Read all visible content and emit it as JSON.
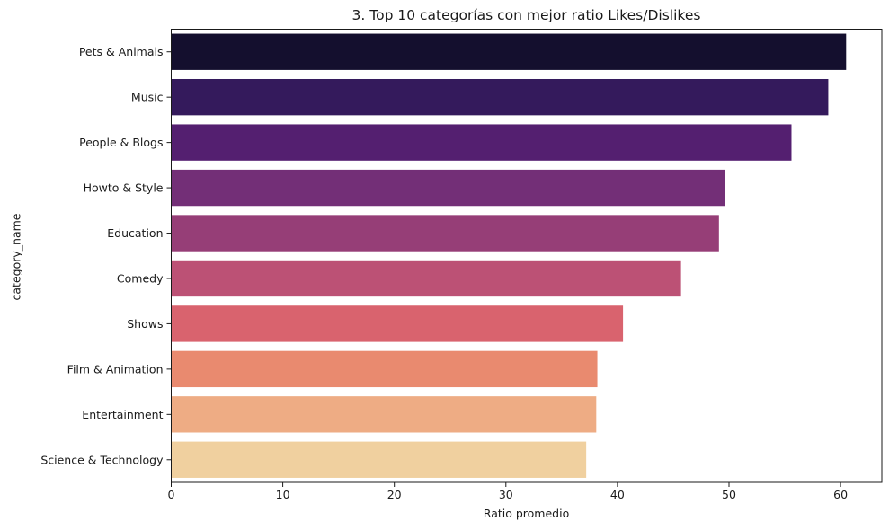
{
  "chart_data": {
    "type": "bar",
    "orientation": "horizontal",
    "title": "3. Top 10 categorías con mejor ratio Likes/Dislikes",
    "xlabel": "Ratio promedio",
    "ylabel": "category_name",
    "categories": [
      "Pets & Animals",
      "Music",
      "People & Blogs",
      "Howto & Style",
      "Education",
      "Comedy",
      "Shows",
      "Film & Animation",
      "Entertainment",
      "Science & Technology"
    ],
    "values": [
      60.5,
      58.9,
      55.6,
      49.6,
      49.1,
      45.7,
      40.5,
      38.2,
      38.1,
      37.2
    ],
    "colors": [
      "#140f2e",
      "#341a5c",
      "#541f70",
      "#732f77",
      "#963e77",
      "#bc5175",
      "#d9636e",
      "#e98a6f",
      "#eeac84",
      "#f0d09f"
    ],
    "xlim": [
      0,
      63.7
    ],
    "xticks": [
      0,
      10,
      20,
      30,
      40,
      50,
      60
    ],
    "grid": false,
    "legend": "none"
  }
}
